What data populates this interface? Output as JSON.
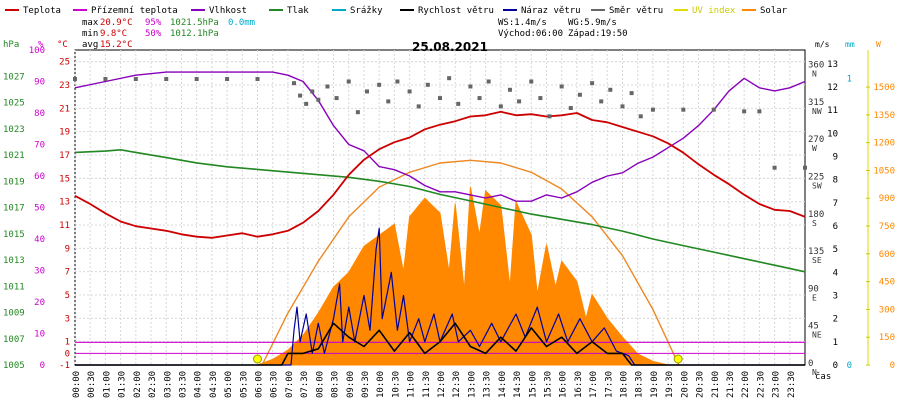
{
  "chart_data": {
    "type": "line",
    "title": "25.08.2021",
    "legend": [
      {
        "label": "Teplota",
        "color": "#cc0000"
      },
      {
        "label": "Přízemní teplota",
        "color": "#cc00cc"
      },
      {
        "label": "Vlhkost",
        "color": "#8800bb"
      },
      {
        "label": "Tlak",
        "color": "#228822"
      },
      {
        "label": "Srážky",
        "color": "#00aacc"
      },
      {
        "label": "Rychlost větru",
        "color": "#000000"
      },
      {
        "label": "Náraz větru",
        "color": "#000099"
      },
      {
        "label": "Směr větru",
        "color": "#666666"
      },
      {
        "label": "UV index",
        "color": "#dddd00"
      },
      {
        "label": "Solar",
        "color": "#ff8800"
      }
    ],
    "stats": {
      "max_label": "max",
      "max_temp": "20.9°C",
      "max_hum": "95%",
      "max_press": "1021.5hPa",
      "rain": "0.0mm",
      "min_label": "min",
      "min_temp": "9.8°C",
      "min_hum": "50%",
      "min_press": "1012.1hPa",
      "avg_label": "avg",
      "avg_temp": "15.2°C",
      "ws": "WS:1.4m/s",
      "wg": "WG:5.9m/s",
      "sunrise": "Východ:06:00",
      "sunset": "Západ:19:50"
    },
    "units": {
      "hpa": "hPa",
      "pct": "%",
      "degc": "°C",
      "ms": "m/s",
      "mm": "mm",
      "w": "W",
      "time": "čas"
    },
    "y_left_press": {
      "range": [
        1005,
        1029
      ],
      "ticks": [
        1005,
        1007,
        1009,
        1011,
        1013,
        1015,
        1017,
        1019,
        1021,
        1023,
        1025,
        1027
      ]
    },
    "y_left_hum": {
      "range": [
        0,
        100
      ],
      "ticks": [
        0,
        10,
        20,
        30,
        40,
        50,
        60,
        70,
        80,
        90,
        100
      ]
    },
    "y_left_temp": {
      "range": [
        -1,
        26
      ],
      "ticks": [
        -1,
        1,
        3,
        5,
        7,
        9,
        11,
        13,
        15,
        17,
        19,
        21,
        23,
        25
      ],
      "extra_ticks": [
        0
      ]
    },
    "y_right_dir": {
      "range": [
        0,
        380
      ],
      "ticks": [
        {
          "v": 0,
          "l": "0",
          "d": "N"
        },
        {
          "v": 45,
          "l": "45",
          "d": "NE"
        },
        {
          "v": 90,
          "l": "90",
          "d": "E"
        },
        {
          "v": 135,
          "l": "135",
          "d": "SE"
        },
        {
          "v": 180,
          "l": "180",
          "d": "S"
        },
        {
          "v": 225,
          "l": "225",
          "d": "SW"
        },
        {
          "v": 270,
          "l": "270",
          "d": "W"
        },
        {
          "v": 315,
          "l": "315",
          "d": "NW"
        },
        {
          "v": 360,
          "l": "360",
          "d": "N"
        }
      ]
    },
    "y_right_ws": {
      "range": [
        0,
        13.6
      ],
      "ticks": [
        0,
        1,
        2,
        3,
        4,
        5,
        6,
        7,
        8,
        9,
        10,
        11,
        12,
        13
      ]
    },
    "y_right_mm": {
      "range": [
        0,
        1.1
      ],
      "ticks": [
        0,
        1
      ]
    },
    "y_right_solar": {
      "range": [
        0,
        1700
      ],
      "ticks": [
        0,
        150,
        300,
        450,
        600,
        750,
        900,
        1050,
        1200,
        1350,
        1500
      ]
    },
    "x_ticks": [
      "00:00",
      "00:30",
      "01:00",
      "01:30",
      "02:00",
      "02:30",
      "03:00",
      "03:30",
      "04:00",
      "04:30",
      "05:00",
      "05:30",
      "06:00",
      "06:30",
      "07:00",
      "07:30",
      "08:00",
      "08:30",
      "09:00",
      "09:30",
      "10:00",
      "10:30",
      "11:00",
      "11:30",
      "12:00",
      "12:30",
      "13:00",
      "13:30",
      "14:00",
      "14:30",
      "15:00",
      "15:30",
      "16:00",
      "16:30",
      "17:00",
      "17:30",
      "18:00",
      "18:30",
      "19:00",
      "19:30",
      "20:00",
      "20:30",
      "21:00",
      "21:30",
      "22:00",
      "22:30",
      "23:00",
      "23:30"
    ],
    "series": {
      "temperature": [
        [
          0,
          13.5
        ],
        [
          0.5,
          12.8
        ],
        [
          1,
          12
        ],
        [
          1.5,
          11.3
        ],
        [
          2,
          10.9
        ],
        [
          2.5,
          10.7
        ],
        [
          3,
          10.5
        ],
        [
          3.5,
          10.2
        ],
        [
          4,
          10
        ],
        [
          4.5,
          9.9
        ],
        [
          5,
          10.1
        ],
        [
          5.5,
          10.3
        ],
        [
          6,
          10
        ],
        [
          6.5,
          10.2
        ],
        [
          7,
          10.5
        ],
        [
          7.5,
          11.2
        ],
        [
          8,
          12.2
        ],
        [
          8.5,
          13.6
        ],
        [
          9,
          15.3
        ],
        [
          9.5,
          16.6
        ],
        [
          10,
          17.5
        ],
        [
          10.5,
          18.1
        ],
        [
          11,
          18.5
        ],
        [
          11.5,
          19.2
        ],
        [
          12,
          19.6
        ],
        [
          12.5,
          19.9
        ],
        [
          13,
          20.3
        ],
        [
          13.5,
          20.4
        ],
        [
          14,
          20.7
        ],
        [
          14.5,
          20.4
        ],
        [
          15,
          20.5
        ],
        [
          15.5,
          20.3
        ],
        [
          16,
          20.4
        ],
        [
          16.5,
          20.6
        ],
        [
          17,
          20
        ],
        [
          17.5,
          19.8
        ],
        [
          18,
          19.4
        ],
        [
          18.5,
          19
        ],
        [
          19,
          18.6
        ],
        [
          19.5,
          18
        ],
        [
          20,
          17.2
        ],
        [
          20.5,
          16.2
        ],
        [
          21,
          15.3
        ],
        [
          21.5,
          14.5
        ],
        [
          22,
          13.6
        ],
        [
          22.5,
          12.8
        ],
        [
          23,
          12.3
        ],
        [
          23.5,
          12.2
        ],
        [
          24,
          11.7
        ]
      ],
      "ground_temp": [
        [
          0,
          0.95
        ],
        [
          24,
          0.95
        ]
      ],
      "humidity": [
        [
          0,
          88
        ],
        [
          1,
          90
        ],
        [
          2,
          92
        ],
        [
          3,
          93
        ],
        [
          4,
          93
        ],
        [
          5,
          93
        ],
        [
          6,
          93
        ],
        [
          6.5,
          93
        ],
        [
          7,
          92
        ],
        [
          7.5,
          90
        ],
        [
          8,
          84
        ],
        [
          8.5,
          76
        ],
        [
          9,
          70
        ],
        [
          9.5,
          68
        ],
        [
          10,
          63
        ],
        [
          10.5,
          62
        ],
        [
          11,
          60
        ],
        [
          11.5,
          57
        ],
        [
          12,
          55
        ],
        [
          12.5,
          55
        ],
        [
          13,
          54
        ],
        [
          13.5,
          53
        ],
        [
          14,
          54
        ],
        [
          14.5,
          52
        ],
        [
          15,
          52
        ],
        [
          15.5,
          54
        ],
        [
          16,
          53
        ],
        [
          16.5,
          55
        ],
        [
          17,
          58
        ],
        [
          17.5,
          60
        ],
        [
          18,
          61
        ],
        [
          18.5,
          64
        ],
        [
          19,
          66
        ],
        [
          19.5,
          69
        ],
        [
          20,
          72
        ],
        [
          20.5,
          76
        ],
        [
          21,
          81
        ],
        [
          21.5,
          87
        ],
        [
          22,
          91
        ],
        [
          22.5,
          88
        ],
        [
          23,
          87
        ],
        [
          23.5,
          88
        ],
        [
          24,
          90
        ]
      ],
      "pressure": [
        [
          0,
          1021.2
        ],
        [
          1,
          1021.3
        ],
        [
          1.5,
          1021.4
        ],
        [
          2,
          1021.2
        ],
        [
          3,
          1020.8
        ],
        [
          4,
          1020.4
        ],
        [
          5,
          1020.1
        ],
        [
          6,
          1019.9
        ],
        [
          7,
          1019.7
        ],
        [
          8,
          1019.5
        ],
        [
          9,
          1019.3
        ],
        [
          10,
          1019
        ],
        [
          11,
          1018.6
        ],
        [
          12,
          1018
        ],
        [
          13,
          1017.5
        ],
        [
          14,
          1017
        ],
        [
          15,
          1016.5
        ],
        [
          16,
          1016.1
        ],
        [
          17,
          1015.7
        ],
        [
          18,
          1015.2
        ],
        [
          19,
          1014.6
        ],
        [
          20,
          1014.1
        ],
        [
          21,
          1013.6
        ],
        [
          22,
          1013.1
        ],
        [
          23,
          1012.6
        ],
        [
          24,
          1012.1
        ]
      ],
      "solar": [
        [
          6,
          0
        ],
        [
          6.5,
          30
        ],
        [
          7,
          80
        ],
        [
          7.5,
          160
        ],
        [
          8,
          280
        ],
        [
          8.5,
          420
        ],
        [
          9,
          500
        ],
        [
          9.5,
          640
        ],
        [
          10,
          700
        ],
        [
          10.5,
          760
        ],
        [
          10.8,
          500
        ],
        [
          11,
          800
        ],
        [
          11.5,
          900
        ],
        [
          12,
          820
        ],
        [
          12.3,
          500
        ],
        [
          12.5,
          870
        ],
        [
          12.8,
          400
        ],
        [
          13,
          960
        ],
        [
          13.3,
          700
        ],
        [
          13.5,
          940
        ],
        [
          14,
          860
        ],
        [
          14.3,
          420
        ],
        [
          14.5,
          880
        ],
        [
          15,
          700
        ],
        [
          15.2,
          380
        ],
        [
          15.5,
          650
        ],
        [
          15.8,
          420
        ],
        [
          16,
          560
        ],
        [
          16.5,
          450
        ],
        [
          16.8,
          250
        ],
        [
          17,
          380
        ],
        [
          17.5,
          250
        ],
        [
          18,
          150
        ],
        [
          18.5,
          60
        ],
        [
          19,
          20
        ],
        [
          19.5,
          0
        ]
      ],
      "solar_theory": [
        [
          6.15,
          0
        ],
        [
          7,
          280
        ],
        [
          8,
          560
        ],
        [
          9,
          800
        ],
        [
          10,
          960
        ],
        [
          11,
          1040
        ],
        [
          12,
          1090
        ],
        [
          13,
          1105
        ],
        [
          14,
          1090
        ],
        [
          15,
          1040
        ],
        [
          16,
          950
        ],
        [
          17,
          800
        ],
        [
          18,
          590
        ],
        [
          19,
          300
        ],
        [
          19.85,
          0
        ]
      ],
      "wind_speed": [
        [
          0,
          0
        ],
        [
          6.8,
          0
        ],
        [
          7,
          0.5
        ],
        [
          7.5,
          0.5
        ],
        [
          8,
          0.7
        ],
        [
          8.5,
          1.8
        ],
        [
          9,
          1.2
        ],
        [
          9.5,
          0.8
        ],
        [
          10,
          1.5
        ],
        [
          10.5,
          0.6
        ],
        [
          11,
          1.4
        ],
        [
          11.5,
          0.5
        ],
        [
          12,
          1
        ],
        [
          12.5,
          1.8
        ],
        [
          13,
          0.8
        ],
        [
          13.5,
          0.5
        ],
        [
          14,
          1.2
        ],
        [
          14.5,
          0.6
        ],
        [
          15,
          1.6
        ],
        [
          15.5,
          0.8
        ],
        [
          16,
          1.2
        ],
        [
          16.5,
          0.5
        ],
        [
          17,
          1
        ],
        [
          17.5,
          0.5
        ],
        [
          18,
          0.5
        ],
        [
          18.3,
          0
        ],
        [
          24,
          0
        ]
      ],
      "wind_gust": [
        [
          0,
          0
        ],
        [
          7.1,
          0
        ],
        [
          7.2,
          1.5
        ],
        [
          7.3,
          2.5
        ],
        [
          7.4,
          1
        ],
        [
          7.6,
          2.2
        ],
        [
          7.8,
          0.5
        ],
        [
          8,
          1.8
        ],
        [
          8.2,
          0.5
        ],
        [
          8.5,
          2
        ],
        [
          8.7,
          3.5
        ],
        [
          8.8,
          1
        ],
        [
          9,
          2.5
        ],
        [
          9.2,
          1
        ],
        [
          9.5,
          3
        ],
        [
          9.7,
          1.5
        ],
        [
          9.9,
          5
        ],
        [
          10,
          5.9
        ],
        [
          10.1,
          2
        ],
        [
          10.4,
          4
        ],
        [
          10.6,
          1.5
        ],
        [
          10.8,
          3
        ],
        [
          11,
          1
        ],
        [
          11.3,
          2
        ],
        [
          11.5,
          1
        ],
        [
          11.8,
          2.2
        ],
        [
          12,
          1
        ],
        [
          12.4,
          2.2
        ],
        [
          12.6,
          1
        ],
        [
          13,
          1.5
        ],
        [
          13.3,
          0.8
        ],
        [
          13.7,
          1.8
        ],
        [
          14,
          1
        ],
        [
          14.5,
          2.2
        ],
        [
          14.8,
          1.2
        ],
        [
          15.2,
          2.5
        ],
        [
          15.5,
          1
        ],
        [
          15.9,
          2.2
        ],
        [
          16.2,
          1
        ],
        [
          16.6,
          2
        ],
        [
          17,
          1
        ],
        [
          17.4,
          1.6
        ],
        [
          17.8,
          0.6
        ],
        [
          18.2,
          0.4
        ],
        [
          18.4,
          0
        ],
        [
          24,
          0
        ]
      ],
      "wind_dir": [
        [
          0,
          345
        ],
        [
          1,
          345
        ],
        [
          2,
          345
        ],
        [
          3,
          345
        ],
        [
          4,
          345
        ],
        [
          5,
          345
        ],
        [
          6,
          345
        ],
        [
          7.2,
          340
        ],
        [
          7.4,
          325
        ],
        [
          7.6,
          315
        ],
        [
          7.8,
          330
        ],
        [
          8,
          320
        ],
        [
          8.3,
          336
        ],
        [
          8.6,
          322
        ],
        [
          9,
          342
        ],
        [
          9.3,
          305
        ],
        [
          9.6,
          330
        ],
        [
          10,
          338
        ],
        [
          10.3,
          318
        ],
        [
          10.6,
          342
        ],
        [
          11,
          330
        ],
        [
          11.3,
          312
        ],
        [
          11.6,
          338
        ],
        [
          12,
          322
        ],
        [
          12.3,
          346
        ],
        [
          12.6,
          315
        ],
        [
          13,
          336
        ],
        [
          13.3,
          322
        ],
        [
          13.6,
          342
        ],
        [
          14,
          312
        ],
        [
          14.3,
          332
        ],
        [
          14.6,
          318
        ],
        [
          15,
          342
        ],
        [
          15.3,
          322
        ],
        [
          15.6,
          300
        ],
        [
          16,
          336
        ],
        [
          16.3,
          310
        ],
        [
          16.6,
          326
        ],
        [
          17,
          340
        ],
        [
          17.3,
          318
        ],
        [
          17.6,
          332
        ],
        [
          18,
          312
        ],
        [
          18.3,
          328
        ],
        [
          18.6,
          300
        ],
        [
          19,
          308
        ],
        [
          20,
          308
        ],
        [
          21,
          308
        ],
        [
          22,
          306
        ],
        [
          22.5,
          306
        ],
        [
          23,
          238
        ],
        [
          24,
          238
        ]
      ]
    }
  }
}
